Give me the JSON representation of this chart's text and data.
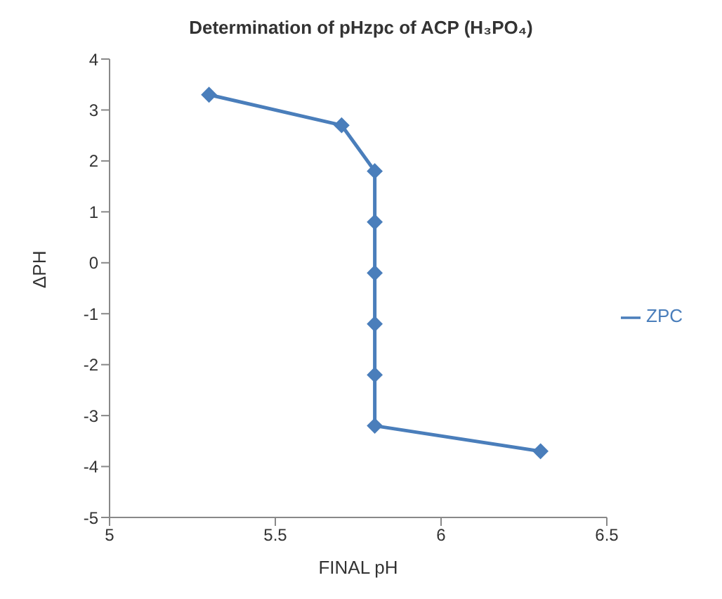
{
  "chart_data": {
    "type": "line",
    "title": "Determination of pHzpc of ACP (H₃PO₄)",
    "xlabel": "FINAL pH",
    "ylabel": "ΔPH",
    "x": [
      5.3,
      5.7,
      5.8,
      5.8,
      5.8,
      5.8,
      5.8,
      5.8,
      6.3
    ],
    "series": [
      {
        "name": "ZPC",
        "color": "#4a7ebb",
        "values": [
          3.3,
          2.7,
          1.8,
          0.8,
          -0.2,
          -1.2,
          -2.2,
          -3.2,
          -3.7
        ]
      }
    ],
    "xlim": [
      5,
      6.5
    ],
    "xticks": [
      5,
      5.5,
      6,
      6.5
    ],
    "ylim": [
      -5,
      4
    ],
    "yticks": [
      -5,
      -4,
      -3,
      -2,
      -1,
      0,
      1,
      2,
      3,
      4
    ],
    "grid": false,
    "legend": "right",
    "marker": "diamond",
    "line_style": "solid"
  }
}
